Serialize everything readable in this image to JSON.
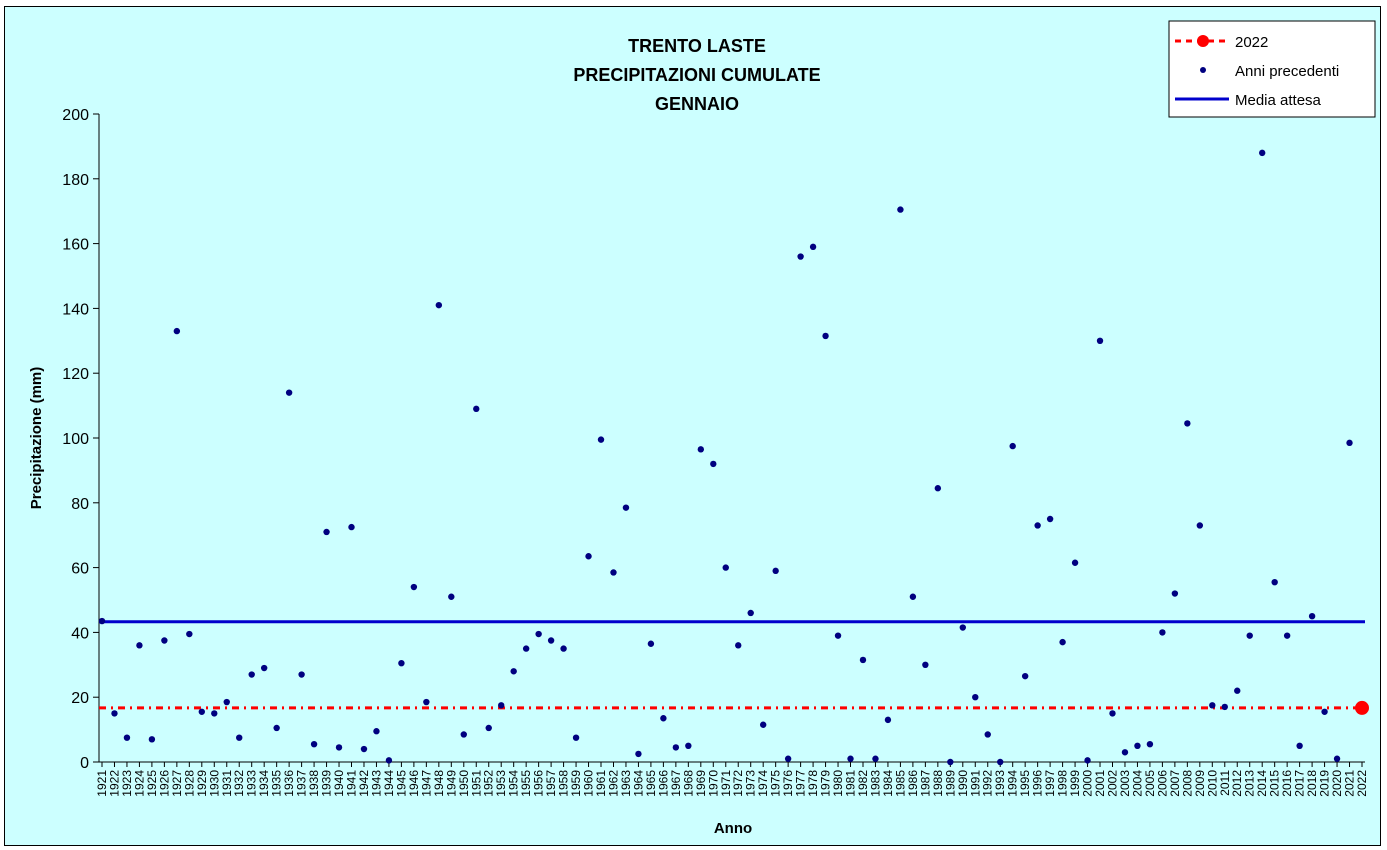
{
  "chart_data": {
    "type": "scatter",
    "title": [
      "TRENTO LASTE",
      "PRECIPITAZIONI CUMULATE",
      "GENNAIO"
    ],
    "xlabel": "Anno",
    "ylabel": "Precipitazione (mm)",
    "ylim": [
      0,
      200
    ],
    "yticks": [
      0,
      20,
      40,
      60,
      80,
      100,
      120,
      140,
      160,
      180,
      200
    ],
    "x": [
      1921,
      1922,
      1923,
      1924,
      1925,
      1926,
      1927,
      1928,
      1929,
      1930,
      1931,
      1932,
      1933,
      1934,
      1935,
      1936,
      1937,
      1938,
      1939,
      1940,
      1941,
      1942,
      1943,
      1944,
      1945,
      1946,
      1947,
      1948,
      1949,
      1950,
      1951,
      1952,
      1953,
      1954,
      1955,
      1956,
      1957,
      1958,
      1959,
      1960,
      1961,
      1962,
      1963,
      1964,
      1965,
      1966,
      1967,
      1968,
      1969,
      1970,
      1971,
      1972,
      1973,
      1974,
      1975,
      1976,
      1977,
      1978,
      1979,
      1980,
      1981,
      1982,
      1983,
      1984,
      1985,
      1986,
      1987,
      1988,
      1989,
      1990,
      1991,
      1992,
      1993,
      1994,
      1995,
      1996,
      1997,
      1998,
      1999,
      2000,
      2001,
      2002,
      2003,
      2004,
      2005,
      2006,
      2007,
      2008,
      2009,
      2010,
      2011,
      2012,
      2013,
      2014,
      2015,
      2016,
      2017,
      2018,
      2019,
      2020,
      2021,
      2022
    ],
    "series": [
      {
        "name": "Anni precedenti",
        "color": "#000080",
        "marker": "dot",
        "values": [
          43.5,
          15,
          7.5,
          36,
          7,
          37.5,
          133,
          39.5,
          15.5,
          15,
          18.5,
          7.5,
          27,
          29,
          10.5,
          114,
          27,
          5.5,
          71,
          4.5,
          72.5,
          4,
          9.5,
          0.5,
          30.5,
          54,
          18.5,
          141,
          51,
          8.5,
          109,
          10.5,
          17.5,
          28,
          35,
          39.5,
          37.5,
          35,
          7.5,
          63.5,
          99.5,
          58.5,
          78.5,
          2.5,
          36.5,
          13.5,
          4.5,
          5,
          96.5,
          92,
          60,
          36,
          46,
          11.5,
          59,
          1,
          156,
          159,
          131.5,
          39,
          1,
          31.5,
          1,
          13,
          170.5,
          51,
          30,
          84.5,
          0,
          41.5,
          20,
          8.5,
          0,
          97.5,
          26.5,
          73,
          75,
          37,
          61.5,
          0.5,
          130,
          15,
          3,
          5,
          5.5,
          40,
          52,
          104.5,
          73,
          17.5,
          17,
          22,
          39,
          188,
          55.5,
          39,
          5,
          45,
          15.5,
          1,
          98.5
        ]
      },
      {
        "name": "2022",
        "color": "#FF0000",
        "marker": "big-dot",
        "x": [
          2022
        ],
        "values": [
          16.7
        ]
      },
      {
        "name": "Media attesa",
        "color": "#0000CC",
        "type": "hline",
        "value": 43.3
      }
    ],
    "reference_2022": 16.7,
    "legend": [
      "2022",
      "Anni precedenti",
      "Media attesa"
    ],
    "legend_position": "top-right",
    "grid": false
  }
}
